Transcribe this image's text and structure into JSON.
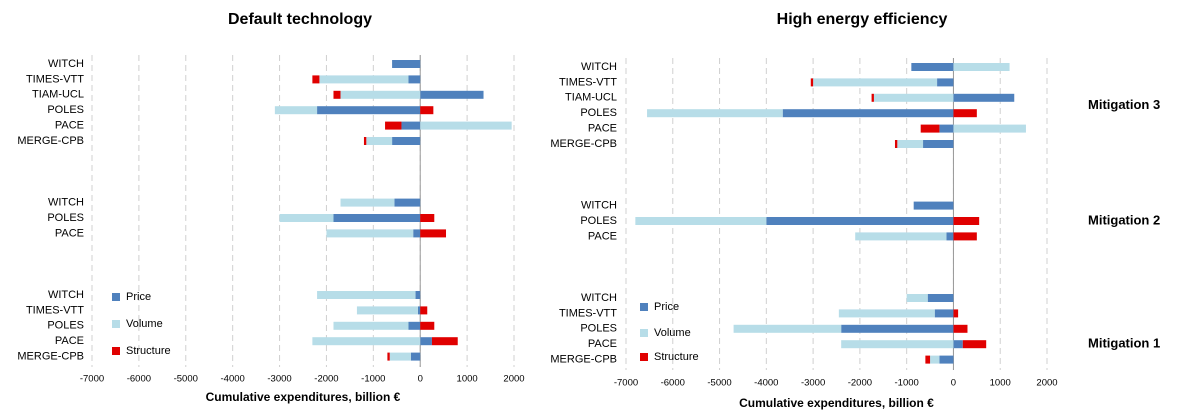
{
  "chart_data": [
    {
      "type": "bar",
      "orientation": "horizontal",
      "stacked": "diverging",
      "title": "Default technology",
      "xlabel": "Cumulative expenditures, billion €",
      "categories": [
        "WITCH",
        "TIMES-VTT",
        "TIAM-UCL",
        "POLES",
        "PACE",
        "MERGE-CPB",
        null,
        null,
        null,
        "WITCH",
        "POLES",
        "PACE",
        null,
        null,
        null,
        "WITCH",
        "TIMES-VTT",
        "POLES",
        "PACE",
        "MERGE-CPB"
      ],
      "series": [
        {
          "name": "Price",
          "color": "#4f81bd",
          "values": [
            -600,
            -250,
            1350,
            -2200,
            -400,
            -600,
            null,
            null,
            null,
            -550,
            -1850,
            -150,
            null,
            null,
            null,
            -100,
            -50,
            -250,
            250,
            -200
          ]
        },
        {
          "name": "Volume",
          "color": "#b7dde8",
          "values": [
            null,
            -1900,
            -1700,
            -900,
            1950,
            -550,
            null,
            null,
            null,
            -1150,
            -1150,
            -1850,
            null,
            null,
            null,
            -2100,
            -1300,
            -1600,
            -2300,
            -450
          ]
        },
        {
          "name": "Structure",
          "color": "#e00000",
          "values": [
            null,
            -150,
            -150,
            280,
            -350,
            -50,
            null,
            null,
            null,
            null,
            300,
            550,
            null,
            null,
            null,
            null,
            150,
            300,
            550,
            -50
          ]
        }
      ],
      "xlim": [
        -7000,
        2000
      ],
      "xticks": [
        -7000,
        -6000,
        -5000,
        -4000,
        -3000,
        -2000,
        -1000,
        0,
        1000,
        2000
      ],
      "grid": true,
      "legend": "lower left"
    },
    {
      "type": "bar",
      "orientation": "horizontal",
      "stacked": "diverging",
      "title": "High energy efficiency",
      "xlabel": "Cumulative expenditures, billion €",
      "categories": [
        "WITCH",
        "TIMES-VTT",
        "TIAM-UCL",
        "POLES",
        "PACE",
        "MERGE-CPB",
        null,
        null,
        null,
        "WITCH",
        "POLES",
        "PACE",
        null,
        null,
        null,
        "WITCH",
        "TIMES-VTT",
        "POLES",
        "PACE",
        "MERGE-CPB"
      ],
      "series": [
        {
          "name": "Price",
          "color": "#4f81bd",
          "values": [
            -900,
            -350,
            1300,
            -3650,
            -300,
            -650,
            null,
            null,
            null,
            -850,
            -4000,
            -150,
            null,
            null,
            null,
            -550,
            -400,
            -2400,
            200,
            -300
          ]
        },
        {
          "name": "Volume",
          "color": "#b7dde8",
          "values": [
            1200,
            -2650,
            -1700,
            -2900,
            1550,
            -550,
            null,
            null,
            null,
            null,
            -2800,
            -1950,
            null,
            null,
            null,
            -450,
            -2050,
            -2300,
            -2400,
            -200
          ]
        },
        {
          "name": "Structure",
          "color": "#e00000",
          "values": [
            null,
            -50,
            -50,
            500,
            -400,
            -50,
            null,
            null,
            null,
            null,
            550,
            500,
            null,
            null,
            null,
            null,
            100,
            300,
            500,
            -100
          ]
        }
      ],
      "xlim": [
        -7000,
        2000
      ],
      "xticks": [
        -7000,
        -6000,
        -5000,
        -4000,
        -3000,
        -2000,
        -1000,
        0,
        1000,
        2000
      ],
      "grid": true,
      "legend": "lower left",
      "annotations": [
        "Mitigation 3",
        "Mitigation 2",
        "Mitigation 1"
      ]
    }
  ]
}
